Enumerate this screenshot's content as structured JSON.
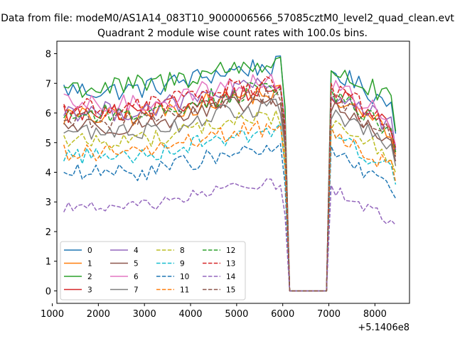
{
  "chart_data": {
    "type": "line",
    "suptitle": "Data from file: modeM0/AS1A14_083T10_9000006566_57085cztM0_level2_quad_clean.evt",
    "title": "Quadrant 2 module wise count rates with 100.0s bins.",
    "xlabel": "",
    "ylabel": "",
    "x_offset_label": "+5.1406e8",
    "xlim": [
      1100,
      8750
    ],
    "ylim": [
      -0.42,
      8.42
    ],
    "xticks": [
      1000,
      2000,
      3000,
      4000,
      5000,
      6000,
      7000,
      8000
    ],
    "yticks": [
      0,
      1,
      2,
      3,
      4,
      5,
      6,
      7,
      8
    ],
    "gap": [
      6150,
      7000
    ],
    "legend_position": "lower-left",
    "series": [
      {
        "name": "0",
        "color": "#1f77b4",
        "dash": "solid",
        "level": 6.8,
        "amp": 0.35
      },
      {
        "name": "1",
        "color": "#ff7f0e",
        "dash": "solid",
        "level": 5.9,
        "amp": 0.35
      },
      {
        "name": "2",
        "color": "#2ca02c",
        "dash": "solid",
        "level": 6.9,
        "amp": 0.4
      },
      {
        "name": "3",
        "color": "#d62728",
        "dash": "solid",
        "level": 6.0,
        "amp": 0.35
      },
      {
        "name": "4",
        "color": "#9467bd",
        "dash": "solid",
        "level": 6.1,
        "amp": 0.35
      },
      {
        "name": "5",
        "color": "#8c564b",
        "dash": "solid",
        "level": 5.6,
        "amp": 0.3
      },
      {
        "name": "6",
        "color": "#e377c2",
        "dash": "solid",
        "level": 6.3,
        "amp": 0.35
      },
      {
        "name": "7",
        "color": "#7f7f7f",
        "dash": "solid",
        "level": 5.4,
        "amp": 0.3
      },
      {
        "name": "8",
        "color": "#bcbd22",
        "dash": "dashed",
        "level": 5.1,
        "amp": 0.3
      },
      {
        "name": "9",
        "color": "#17becf",
        "dash": "dashed",
        "level": 4.6,
        "amp": 0.3
      },
      {
        "name": "10",
        "color": "#1f77b4",
        "dash": "dashed",
        "level": 4.0,
        "amp": 0.3
      },
      {
        "name": "11",
        "color": "#ff7f0e",
        "dash": "dashed",
        "level": 4.7,
        "amp": 0.3
      },
      {
        "name": "12",
        "color": "#2ca02c",
        "dash": "dashed",
        "level": 6.0,
        "amp": 0.35
      },
      {
        "name": "13",
        "color": "#d62728",
        "dash": "dashed",
        "level": 6.2,
        "amp": 0.35
      },
      {
        "name": "14",
        "color": "#9467bd",
        "dash": "dashed",
        "level": 2.85,
        "amp": 0.2
      },
      {
        "name": "15",
        "color": "#8c564b",
        "dash": "dashed",
        "level": 5.8,
        "amp": 0.3
      }
    ]
  }
}
